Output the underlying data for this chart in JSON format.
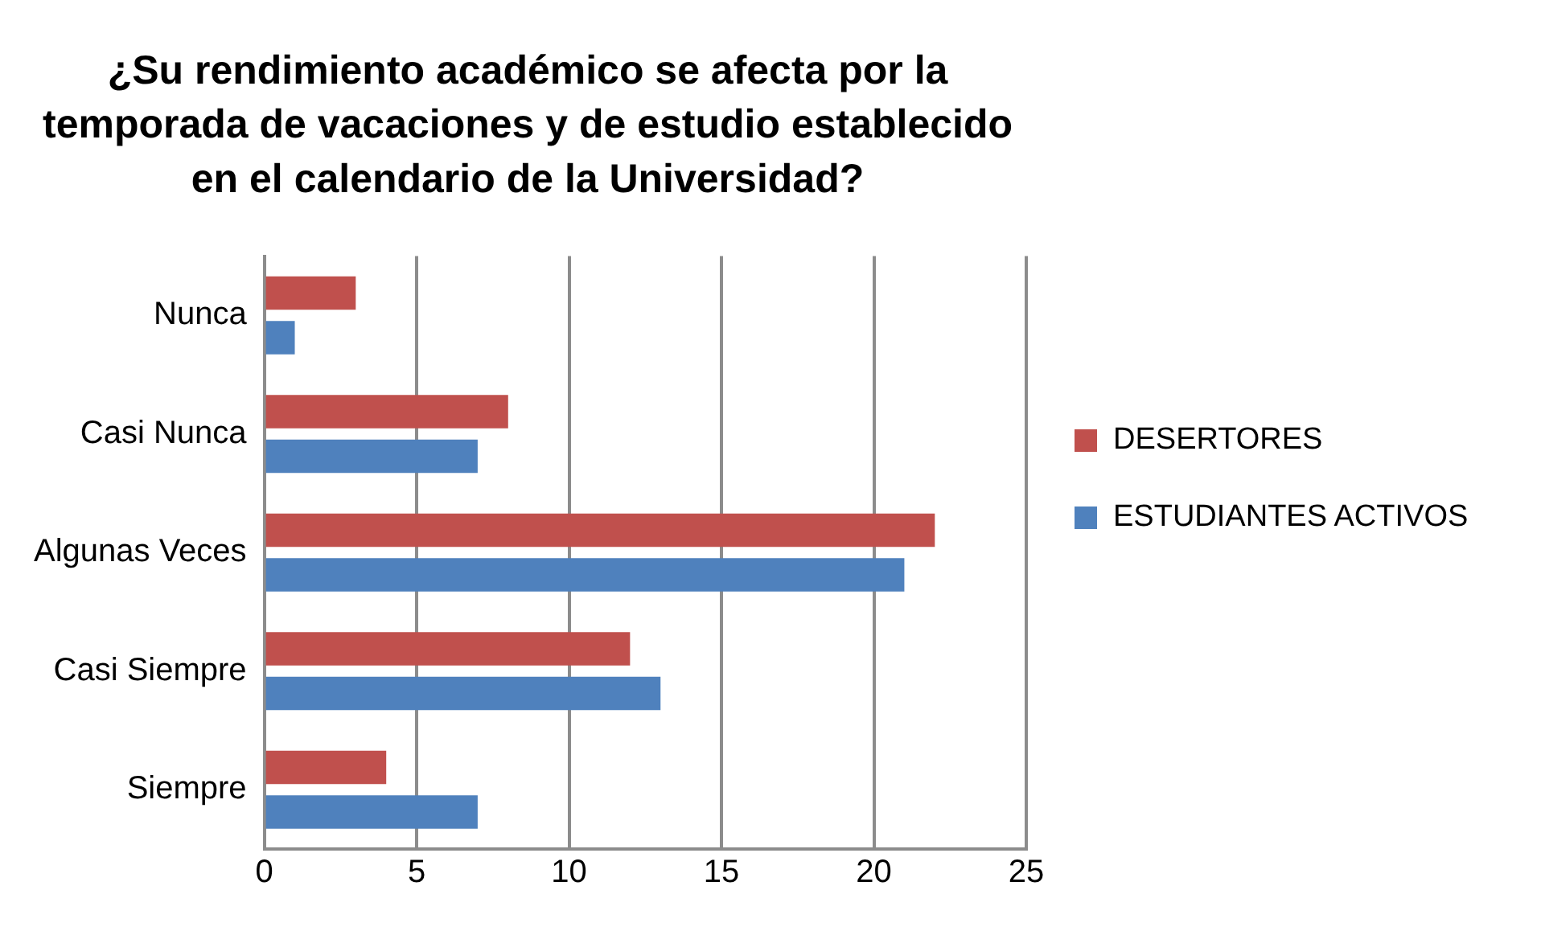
{
  "chart_data": {
    "type": "bar",
    "orientation": "horizontal",
    "title": "¿Su rendimiento académico se afecta por la temporada de vacaciones y de estudio establecido en el calendario de la Universidad?",
    "categories": [
      "Nunca",
      "Casi Nunca",
      "Algunas Veces",
      "Casi Siempre",
      "Siempre"
    ],
    "series": [
      {
        "name": "DESERTORES",
        "color": "#c0504d",
        "values": [
          3,
          8,
          22,
          12,
          4
        ]
      },
      {
        "name": "ESTUDIANTES ACTIVOS",
        "color": "#4f81bd",
        "values": [
          1,
          7,
          21,
          13,
          7
        ]
      }
    ],
    "xlim": [
      0,
      25
    ],
    "xticks": [
      0,
      5,
      10,
      15,
      20,
      25
    ],
    "grid": "x",
    "legend": "right"
  }
}
